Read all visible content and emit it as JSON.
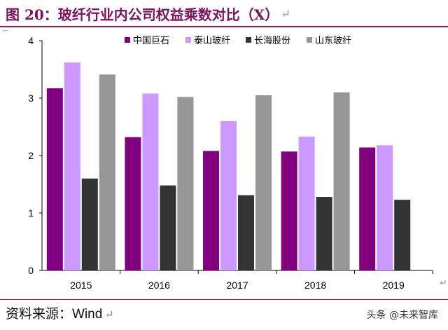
{
  "figure": {
    "label": "图 20：",
    "title": "玻纤行业内公司权益乘数对比（X）",
    "return_mark": "↵"
  },
  "source": {
    "prefix": "资料来源：",
    "name": "Wind"
  },
  "watermark": {
    "text": "头条 @未来智库"
  },
  "colors": {
    "accent": "#8b1a6b",
    "series": [
      "#800080",
      "#cc99ff",
      "#333333",
      "#969696"
    ]
  },
  "chart_data": {
    "type": "bar",
    "categories": [
      "2015",
      "2016",
      "2017",
      "2018",
      "2019"
    ],
    "series": [
      {
        "name": "中国巨石",
        "values": [
          3.17,
          2.32,
          2.08,
          2.07,
          2.14
        ]
      },
      {
        "name": "泰山玻纤",
        "values": [
          3.62,
          3.08,
          2.6,
          2.33,
          2.18
        ]
      },
      {
        "name": "长海股份",
        "values": [
          1.6,
          1.48,
          1.31,
          1.28,
          1.23
        ]
      },
      {
        "name": "山东玻纤",
        "values": [
          3.41,
          3.02,
          3.05,
          3.1,
          null
        ]
      }
    ],
    "title": "",
    "xlabel": "",
    "ylabel": "",
    "ylim": [
      0,
      4
    ],
    "yticks": [
      "0",
      "1",
      "2",
      "3",
      "4"
    ],
    "grid": false,
    "legend_position": "top-right"
  }
}
